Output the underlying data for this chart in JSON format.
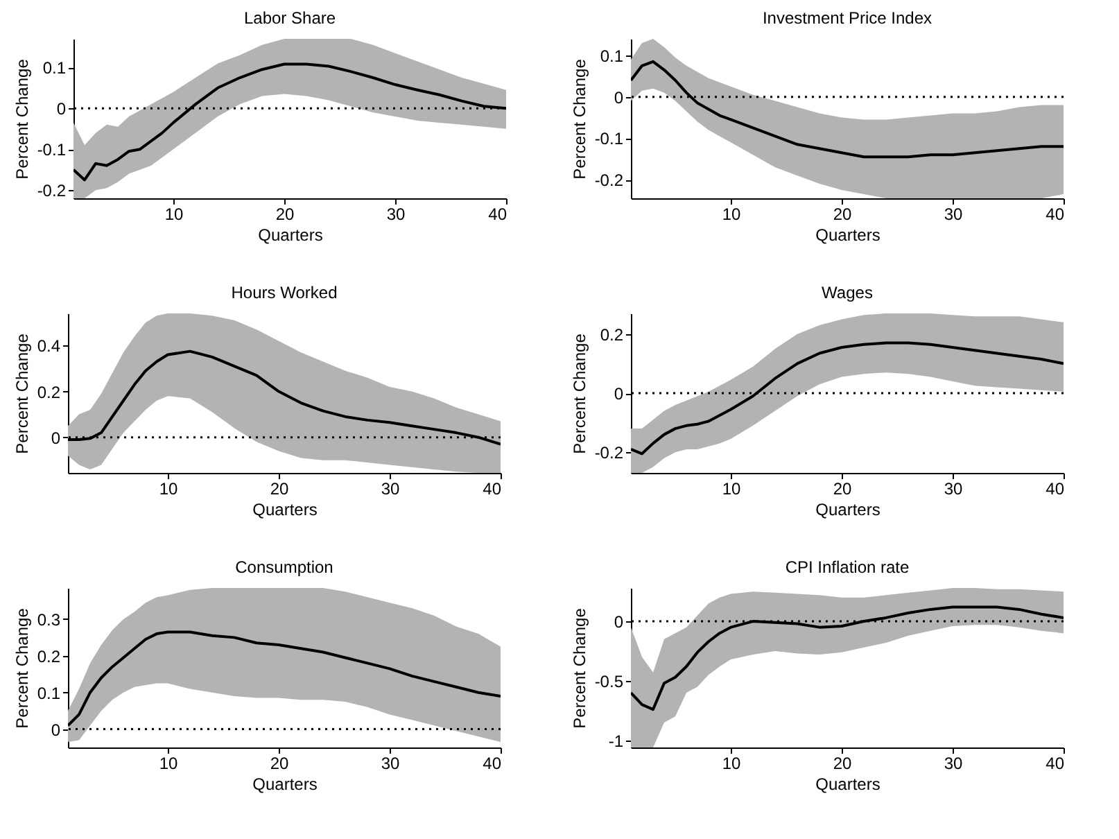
{
  "chart_data": [
    {
      "type": "line",
      "title": "Labor Share",
      "xlabel": "Quarters",
      "ylabel": "Percent Change",
      "xlim": [
        1,
        40
      ],
      "xticks": [
        10,
        20,
        30,
        40
      ],
      "ylim": [
        -0.22,
        0.17
      ],
      "yticks": [
        -0.2,
        -0.1,
        0,
        0.1
      ],
      "x": [
        1,
        2,
        3,
        4,
        5,
        6,
        7,
        8,
        9,
        10,
        12,
        14,
        16,
        18,
        20,
        22,
        24,
        26,
        28,
        30,
        32,
        34,
        36,
        38,
        40
      ],
      "series": [
        {
          "color": "#000000",
          "values": [
            -0.15,
            -0.175,
            -0.135,
            -0.14,
            -0.125,
            -0.105,
            -0.1,
            -0.08,
            -0.06,
            -0.035,
            0.01,
            0.05,
            0.075,
            0.095,
            0.108,
            0.108,
            0.103,
            0.09,
            0.075,
            0.058,
            0.045,
            0.033,
            0.018,
            0.005,
            0.0
          ],
          "upper": [
            -0.035,
            -0.09,
            -0.06,
            -0.04,
            -0.045,
            -0.02,
            -0.005,
            0.01,
            0.025,
            0.04,
            0.075,
            0.11,
            0.13,
            0.155,
            0.17,
            0.17,
            0.17,
            0.17,
            0.155,
            0.135,
            0.115,
            0.095,
            0.075,
            0.06,
            0.045
          ],
          "lower": [
            -0.22,
            -0.22,
            -0.2,
            -0.195,
            -0.18,
            -0.16,
            -0.15,
            -0.14,
            -0.12,
            -0.1,
            -0.06,
            -0.02,
            0.01,
            0.03,
            0.035,
            0.03,
            0.02,
            0.005,
            -0.01,
            -0.02,
            -0.03,
            -0.035,
            -0.04,
            -0.045,
            -0.05
          ]
        }
      ],
      "ref_lines": [
        {
          "axis": "y",
          "value": 0,
          "line_style": "dotted"
        }
      ]
    },
    {
      "type": "line",
      "title": "Investment Price Index",
      "xlabel": "Quarters",
      "ylabel": "Percent Change",
      "xlim": [
        1,
        40
      ],
      "xticks": [
        10,
        20,
        30,
        40
      ],
      "ylim": [
        -0.245,
        0.14
      ],
      "yticks": [
        -0.2,
        -0.1,
        0,
        0.1
      ],
      "x": [
        1,
        2,
        3,
        4,
        5,
        6,
        7,
        8,
        9,
        10,
        12,
        14,
        16,
        18,
        20,
        22,
        24,
        26,
        28,
        30,
        32,
        34,
        36,
        38,
        40
      ],
      "series": [
        {
          "color": "#000000",
          "values": [
            0.04,
            0.075,
            0.085,
            0.065,
            0.04,
            0.01,
            -0.015,
            -0.03,
            -0.045,
            -0.055,
            -0.075,
            -0.095,
            -0.115,
            -0.125,
            -0.135,
            -0.145,
            -0.145,
            -0.145,
            -0.14,
            -0.14,
            -0.135,
            -0.13,
            -0.125,
            -0.12,
            -0.12
          ],
          "upper": [
            0.09,
            0.13,
            0.14,
            0.12,
            0.095,
            0.075,
            0.06,
            0.045,
            0.035,
            0.025,
            0.005,
            -0.01,
            -0.025,
            -0.04,
            -0.05,
            -0.055,
            -0.055,
            -0.05,
            -0.045,
            -0.04,
            -0.04,
            -0.035,
            -0.025,
            -0.02,
            -0.02
          ],
          "lower": [
            -0.01,
            0.015,
            0.02,
            0.01,
            -0.01,
            -0.035,
            -0.06,
            -0.08,
            -0.095,
            -0.11,
            -0.14,
            -0.17,
            -0.19,
            -0.21,
            -0.225,
            -0.235,
            -0.245,
            -0.245,
            -0.245,
            -0.245,
            -0.245,
            -0.245,
            -0.245,
            -0.245,
            -0.235
          ]
        }
      ],
      "ref_lines": [
        {
          "axis": "y",
          "value": 0,
          "line_style": "dotted"
        }
      ]
    },
    {
      "type": "line",
      "title": "Hours Worked",
      "xlabel": "Quarters",
      "ylabel": "Percent Change",
      "xlim": [
        1,
        40
      ],
      "xticks": [
        10,
        20,
        30,
        40
      ],
      "ylim": [
        -0.155,
        0.54
      ],
      "yticks": [
        0,
        0.2,
        0.4
      ],
      "x": [
        1,
        2,
        3,
        4,
        5,
        6,
        7,
        8,
        9,
        10,
        12,
        14,
        16,
        18,
        20,
        22,
        24,
        26,
        28,
        30,
        32,
        34,
        36,
        38,
        40
      ],
      "series": [
        {
          "color": "#000000",
          "values": [
            -0.01,
            -0.01,
            -0.005,
            0.02,
            0.09,
            0.16,
            0.23,
            0.29,
            0.33,
            0.36,
            0.375,
            0.35,
            0.31,
            0.27,
            0.2,
            0.15,
            0.115,
            0.09,
            0.075,
            0.065,
            0.05,
            0.035,
            0.02,
            0.0,
            -0.03
          ],
          "upper": [
            0.05,
            0.1,
            0.12,
            0.19,
            0.28,
            0.37,
            0.44,
            0.5,
            0.53,
            0.54,
            0.54,
            0.53,
            0.51,
            0.47,
            0.42,
            0.37,
            0.33,
            0.29,
            0.26,
            0.22,
            0.2,
            0.17,
            0.13,
            0.1,
            0.07
          ],
          "lower": [
            -0.08,
            -0.12,
            -0.14,
            -0.12,
            -0.05,
            0.02,
            0.07,
            0.12,
            0.16,
            0.18,
            0.17,
            0.11,
            0.04,
            -0.02,
            -0.06,
            -0.09,
            -0.1,
            -0.1,
            -0.11,
            -0.12,
            -0.13,
            -0.14,
            -0.15,
            -0.155,
            -0.155
          ]
        }
      ],
      "ref_lines": [
        {
          "axis": "y",
          "value": 0,
          "line_style": "dotted"
        }
      ]
    },
    {
      "type": "line",
      "title": "Wages",
      "xlabel": "Quarters",
      "ylabel": "Percent Change",
      "xlim": [
        1,
        40
      ],
      "xticks": [
        10,
        20,
        30,
        40
      ],
      "ylim": [
        -0.27,
        0.27
      ],
      "yticks": [
        -0.2,
        0,
        0.2
      ],
      "x": [
        1,
        2,
        3,
        4,
        5,
        6,
        7,
        8,
        9,
        10,
        12,
        14,
        16,
        18,
        20,
        22,
        24,
        26,
        28,
        30,
        32,
        34,
        36,
        38,
        40
      ],
      "series": [
        {
          "color": "#000000",
          "values": [
            -0.19,
            -0.205,
            -0.17,
            -0.14,
            -0.12,
            -0.11,
            -0.105,
            -0.095,
            -0.075,
            -0.055,
            -0.01,
            0.05,
            0.1,
            0.135,
            0.155,
            0.165,
            0.17,
            0.17,
            0.165,
            0.155,
            0.145,
            0.135,
            0.125,
            0.115,
            0.1
          ],
          "upper": [
            -0.12,
            -0.12,
            -0.09,
            -0.06,
            -0.04,
            -0.025,
            -0.01,
            0.005,
            0.025,
            0.045,
            0.09,
            0.15,
            0.2,
            0.23,
            0.25,
            0.265,
            0.27,
            0.27,
            0.27,
            0.265,
            0.26,
            0.26,
            0.26,
            0.25,
            0.24
          ],
          "lower": [
            -0.27,
            -0.27,
            -0.25,
            -0.22,
            -0.2,
            -0.19,
            -0.19,
            -0.18,
            -0.17,
            -0.155,
            -0.11,
            -0.06,
            -0.01,
            0.03,
            0.055,
            0.065,
            0.07,
            0.065,
            0.055,
            0.04,
            0.025,
            0.02,
            0.015,
            0.01,
            0.005
          ]
        }
      ],
      "ref_lines": [
        {
          "axis": "y",
          "value": 0,
          "line_style": "dotted"
        }
      ]
    },
    {
      "type": "line",
      "title": "Consumption",
      "xlabel": "Quarters",
      "ylabel": "Percent Change",
      "xlim": [
        1,
        40
      ],
      "xticks": [
        10,
        20,
        30,
        40
      ],
      "ylim": [
        -0.05,
        0.385
      ],
      "yticks": [
        0,
        0.1,
        0.2,
        0.3
      ],
      "x": [
        1,
        2,
        3,
        4,
        5,
        6,
        7,
        8,
        9,
        10,
        12,
        14,
        16,
        18,
        20,
        22,
        24,
        26,
        28,
        30,
        32,
        34,
        36,
        38,
        40
      ],
      "series": [
        {
          "color": "#000000",
          "values": [
            0.01,
            0.04,
            0.1,
            0.14,
            0.17,
            0.195,
            0.22,
            0.245,
            0.26,
            0.265,
            0.265,
            0.255,
            0.25,
            0.235,
            0.23,
            0.22,
            0.21,
            0.195,
            0.18,
            0.165,
            0.145,
            0.13,
            0.115,
            0.1,
            0.09
          ],
          "upper": [
            0.05,
            0.11,
            0.18,
            0.23,
            0.27,
            0.3,
            0.32,
            0.345,
            0.36,
            0.365,
            0.38,
            0.385,
            0.385,
            0.385,
            0.385,
            0.385,
            0.385,
            0.375,
            0.36,
            0.345,
            0.33,
            0.31,
            0.28,
            0.26,
            0.225
          ],
          "lower": [
            -0.035,
            -0.03,
            0.01,
            0.05,
            0.08,
            0.1,
            0.115,
            0.12,
            0.125,
            0.125,
            0.11,
            0.1,
            0.09,
            0.085,
            0.085,
            0.08,
            0.08,
            0.075,
            0.06,
            0.04,
            0.025,
            0.01,
            -0.005,
            -0.02,
            -0.035
          ]
        }
      ],
      "ref_lines": [
        {
          "axis": "y",
          "value": 0,
          "line_style": "dotted"
        }
      ]
    },
    {
      "type": "line",
      "title": "CPI Inflation rate",
      "xlabel": "Quarters",
      "ylabel": "Percent Change",
      "xlim": [
        1,
        40
      ],
      "xticks": [
        10,
        20,
        30,
        40
      ],
      "ylim": [
        -1.06,
        0.28
      ],
      "yticks": [
        -1,
        -0.5,
        0
      ],
      "x": [
        1,
        2,
        3,
        4,
        5,
        6,
        7,
        8,
        9,
        10,
        12,
        14,
        16,
        18,
        20,
        22,
        24,
        26,
        28,
        30,
        32,
        34,
        36,
        38,
        40
      ],
      "series": [
        {
          "color": "#000000",
          "values": [
            -0.6,
            -0.7,
            -0.74,
            -0.52,
            -0.47,
            -0.38,
            -0.26,
            -0.17,
            -0.1,
            -0.05,
            0.0,
            -0.01,
            -0.02,
            -0.05,
            -0.04,
            0.0,
            0.03,
            0.07,
            0.1,
            0.12,
            0.12,
            0.12,
            0.1,
            0.06,
            0.03
          ],
          "upper": [
            -0.05,
            -0.3,
            -0.43,
            -0.15,
            -0.1,
            -0.05,
            0.05,
            0.15,
            0.2,
            0.23,
            0.25,
            0.24,
            0.23,
            0.22,
            0.2,
            0.2,
            0.22,
            0.24,
            0.26,
            0.28,
            0.28,
            0.27,
            0.27,
            0.26,
            0.25
          ],
          "lower": [
            -1.06,
            -1.06,
            -1.06,
            -0.85,
            -0.8,
            -0.6,
            -0.55,
            -0.45,
            -0.38,
            -0.32,
            -0.28,
            -0.25,
            -0.27,
            -0.28,
            -0.26,
            -0.22,
            -0.18,
            -0.12,
            -0.08,
            -0.04,
            -0.03,
            -0.03,
            -0.05,
            -0.08,
            -0.1
          ]
        }
      ],
      "ref_lines": [
        {
          "axis": "y",
          "value": 0,
          "line_style": "dotted"
        }
      ]
    }
  ]
}
